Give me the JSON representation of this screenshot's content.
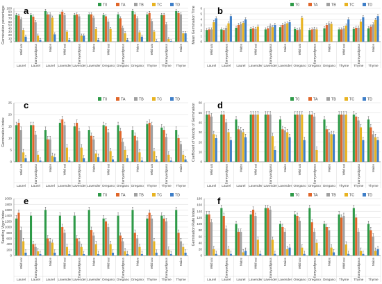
{
  "figure": {
    "colors": {
      "T0": "#2e9a48",
      "TA": "#e0662a",
      "TB": "#a0a0a0",
      "TC": "#e8b321",
      "TD": "#3f7fc8",
      "axis": "#7f7f7f",
      "grid": "#d9d9d9",
      "text": "#404040"
    }
  },
  "chart_data": [
    {
      "panel": "a",
      "type": "bar",
      "ylabel": "Germination percentage",
      "ylim": [
        0,
        100
      ],
      "yticks": [
        0,
        10,
        20,
        30,
        40,
        50,
        60,
        70,
        80,
        90,
        100
      ],
      "legend": [
        "T0",
        "TA",
        "TB",
        "TC",
        "TD"
      ],
      "legend_position": "top-right",
      "categories": [
        "Wild oat",
        "Barnyardgrass",
        "Maize",
        "Wild oat",
        "Barnyardgrass",
        "Maize",
        "Wild oat",
        "Barnyardgrass",
        "Maize",
        "Wild oat",
        "Barnyardgrass",
        "Maize"
      ],
      "groups": [
        "Laurel",
        "Laurel",
        "Laurel",
        "Lavender",
        "Lavender",
        "Lavender",
        "Oregano",
        "Oregano",
        "Oregano",
        "Thyme",
        "Thyme",
        "Thyme"
      ],
      "series": [
        {
          "name": "T0",
          "values": [
            80,
            80,
            92,
            82,
            80,
            82,
            80,
            82,
            92,
            82,
            80,
            92
          ]
        },
        {
          "name": "TA",
          "values": [
            78,
            75,
            82,
            90,
            82,
            82,
            76,
            70,
            82,
            86,
            80,
            86
          ]
        },
        {
          "name": "TB",
          "values": [
            68,
            58,
            82,
            80,
            76,
            72,
            60,
            42,
            70,
            62,
            52,
            82
          ]
        },
        {
          "name": "TC",
          "values": [
            35,
            18,
            72,
            30,
            18,
            38,
            38,
            25,
            28,
            30,
            8,
            25
          ]
        },
        {
          "name": "TD",
          "values": [
            15,
            5,
            22,
            5,
            18,
            5,
            0,
            5,
            15,
            2,
            2,
            25
          ]
        }
      ]
    },
    {
      "panel": "b",
      "type": "bar",
      "ylabel": "Mean Germination Time",
      "ylim": [
        0,
        6
      ],
      "yticks": [
        0,
        1,
        2,
        3,
        4,
        5,
        6
      ],
      "legend": [
        "T0",
        "TA",
        "TB",
        "TC",
        "TD"
      ],
      "legend_position": "top-right",
      "categories": [
        "Wild oat",
        "Barnyardgrass",
        "Maize",
        "Wild oat",
        "Barnyardgrass",
        "Maize",
        "Wild oat",
        "Barnyardgrass",
        "Maize",
        "Wild oat",
        "Barnyardgrass",
        "Maize"
      ],
      "groups": [
        "Laurel",
        "Laurel",
        "Laurel",
        "Lavender",
        "Lavender",
        "Lavender",
        "Oregano",
        "Oregano",
        "Oregano",
        "Thyme",
        "Thyme",
        "Thyme"
      ],
      "series": [
        {
          "name": "T0",
          "values": [
            2.1,
            2.2,
            2.5,
            2.3,
            2.2,
            2.6,
            2.3,
            2.1,
            2.4,
            2.2,
            2.3,
            2.4
          ]
        },
        {
          "name": "TA",
          "values": [
            2.2,
            2.1,
            3.0,
            2.4,
            2.4,
            3.0,
            2.1,
            2.2,
            3.0,
            2.2,
            2.5,
            2.7
          ]
        },
        {
          "name": "TB",
          "values": [
            2.2,
            2.5,
            3.2,
            2.3,
            2.9,
            3.2,
            2.2,
            2.3,
            3.3,
            2.4,
            2.5,
            3.1
          ]
        },
        {
          "name": "TC",
          "values": [
            3.5,
            3.3,
            3.4,
            2.7,
            2.6,
            3.3,
            4.3,
            2.2,
            3.2,
            2.9,
            3.6,
            3.9
          ]
        },
        {
          "name": "TD",
          "values": [
            4.2,
            4.6,
            4.0,
            0,
            3.0,
            3.5,
            0,
            0,
            0,
            4.0,
            4.4,
            4.6
          ]
        }
      ]
    },
    {
      "panel": "c",
      "type": "bar",
      "ylabel": "Germination Index",
      "ylim": [
        0,
        25
      ],
      "yticks": [
        0,
        5,
        10,
        15,
        20,
        25
      ],
      "legend": [
        "T0",
        "TA",
        "TB",
        "TC",
        "TD"
      ],
      "legend_position": "top-right",
      "categories": [
        "Wild oat",
        "Barnyardgrass",
        "Maize",
        "Wild oat",
        "Barnyardgrass",
        "Maize",
        "Wild oat",
        "Barnyardgrass",
        "Maize",
        "Wild oat",
        "Barnyardgrass",
        "Maize"
      ],
      "groups": [
        "Laurel",
        "Laurel",
        "Laurel",
        "Lavender",
        "Lavender",
        "Lavender",
        "Oregano",
        "Oregano",
        "Oregano",
        "Thyme",
        "Thyme",
        "Thyme"
      ],
      "series": [
        {
          "name": "T0",
          "values": [
            15.5,
            15.5,
            13.5,
            16.5,
            15.0,
            13.5,
            15.5,
            15.5,
            13.5,
            16.0,
            14.5,
            13.5
          ]
        },
        {
          "name": "TA",
          "values": [
            16.5,
            15.5,
            9.5,
            18.0,
            16.5,
            11.0,
            15.0,
            13.0,
            11.0,
            16.5,
            13.5,
            10.0
          ]
        },
        {
          "name": "TB",
          "values": [
            13.5,
            11.5,
            9.5,
            15.5,
            13.0,
            9.5,
            12.5,
            8.5,
            9.0,
            15.5,
            10.5,
            7.5
          ]
        },
        {
          "name": "TC",
          "values": [
            4.0,
            3.0,
            2.5,
            6.0,
            6.0,
            3.5,
            4.5,
            5.0,
            4.0,
            4.5,
            3.0,
            3.0
          ]
        },
        {
          "name": "TD",
          "values": [
            1.5,
            0.5,
            2.0,
            0.5,
            1.5,
            2.0,
            1.0,
            1.5,
            0.5,
            1.0,
            0.5,
            1.0
          ]
        }
      ]
    },
    {
      "panel": "d",
      "type": "bar",
      "ylabel": "Coefficient of Velocity of Germination",
      "ylim": [
        0,
        60
      ],
      "yticks": [
        0,
        10,
        20,
        30,
        40,
        50,
        60
      ],
      "legend": [
        "T0",
        "TA",
        "TB",
        "TC",
        "TD"
      ],
      "legend_position": "top-right",
      "categories": [
        "Wild oat",
        "Barnyardgrass",
        "Maize",
        "Wild oat",
        "Barnyardgrass",
        "Maize",
        "Wild oat",
        "Barnyardgrass",
        "Maize",
        "Wild oat",
        "Barnyardgrass",
        "Maize"
      ],
      "groups": [
        "Laurel",
        "Laurel",
        "Laurel",
        "Lavender",
        "Lavender",
        "Lavender",
        "Oregano",
        "Oregano",
        "Oregano",
        "Thyme",
        "Thyme",
        "Thyme"
      ],
      "series": [
        {
          "name": "T0",
          "values": [
            48,
            48,
            43,
            48,
            48,
            43,
            48,
            48,
            43,
            48,
            48,
            43
          ]
        },
        {
          "name": "TA",
          "values": [
            48,
            48,
            33,
            48,
            48,
            33,
            48,
            48,
            33,
            48,
            46,
            35
          ]
        },
        {
          "name": "TB",
          "values": [
            46,
            40,
            32,
            48,
            48,
            32,
            48,
            46,
            30,
            48,
            42,
            28
          ]
        },
        {
          "name": "TC",
          "values": [
            28,
            30,
            30,
            48,
            26,
            30,
            48,
            12,
            28,
            48,
            35,
            25
          ]
        },
        {
          "name": "TD",
          "values": [
            24,
            22,
            25,
            0,
            12,
            25,
            22,
            0,
            28,
            0,
            22,
            22
          ]
        }
      ]
    },
    {
      "panel": "e",
      "type": "bar",
      "ylabel": "Seedling Vigor Index",
      "ylim": [
        0,
        2000
      ],
      "yticks": [
        0,
        200,
        400,
        600,
        800,
        1000,
        1200,
        1400,
        1600,
        1800,
        2000
      ],
      "legend": [
        "T0",
        "TA",
        "TB",
        "TC",
        "TD"
      ],
      "legend_position": "top-right",
      "categories": [
        "Wild oat",
        "Barnyardgrass",
        "Maize",
        "Wild oat",
        "Barnyardgrass",
        "Maize",
        "Wild oat",
        "Barnyardgrass",
        "Maize",
        "Wild oat",
        "Barnyardgrass",
        "Maize"
      ],
      "groups": [
        "Laurel",
        "Laurel",
        "Laurel",
        "Lavender",
        "Lavender",
        "Lavender",
        "Oregano",
        "Oregano",
        "Oregano",
        "Thyme",
        "Thyme",
        "Thyme"
      ],
      "series": [
        {
          "name": "T0",
          "values": [
            1300,
            1400,
            1600,
            1400,
            1400,
            1600,
            1300,
            1400,
            1600,
            1300,
            1400,
            1600
          ]
        },
        {
          "name": "TA",
          "values": [
            1500,
            400,
            600,
            1000,
            600,
            900,
            1200,
            700,
            800,
            1500,
            1300,
            800
          ]
        },
        {
          "name": "TB",
          "values": [
            900,
            300,
            500,
            800,
            500,
            700,
            1000,
            500,
            600,
            1300,
            1200,
            500
          ]
        },
        {
          "name": "TC",
          "values": [
            500,
            150,
            450,
            300,
            300,
            400,
            400,
            150,
            300,
            500,
            200,
            300
          ]
        },
        {
          "name": "TD",
          "values": [
            100,
            50,
            100,
            50,
            50,
            50,
            100,
            50,
            50,
            100,
            50,
            100
          ]
        }
      ]
    },
    {
      "panel": "f",
      "type": "bar",
      "ylabel": "Germination Rate Index",
      "ylim": [
        0,
        180
      ],
      "yticks": [
        0,
        20,
        40,
        60,
        80,
        100,
        120,
        140,
        160,
        180
      ],
      "legend": [
        "T0",
        "TA",
        "TB",
        "TC",
        "TD"
      ],
      "legend_position": "top-right",
      "categories": [
        "Wild oat",
        "Barnyardgrass",
        "Maize",
        "Wild oat",
        "Barnyardgrass",
        "Maize",
        "Wild oat",
        "Barnyardgrass",
        "Maize",
        "Wild oat",
        "Barnyardgrass",
        "Maize"
      ],
      "groups": [
        "Laurel",
        "Laurel",
        "Laurel",
        "Lavender",
        "Lavender",
        "Lavender",
        "Oregano",
        "Oregano",
        "Oregano",
        "Thyme",
        "Thyme",
        "Thyme"
      ],
      "series": [
        {
          "name": "T0",
          "values": [
            130,
            150,
            100,
            130,
            150,
            100,
            130,
            150,
            100,
            130,
            150,
            100
          ]
        },
        {
          "name": "TA",
          "values": [
            130,
            125,
            75,
            145,
            150,
            90,
            125,
            105,
            90,
            120,
            120,
            80
          ]
        },
        {
          "name": "TB",
          "values": [
            105,
            85,
            75,
            125,
            145,
            75,
            110,
            75,
            80,
            125,
            75,
            60
          ]
        },
        {
          "name": "TC",
          "values": [
            20,
            20,
            10,
            50,
            50,
            20,
            25,
            40,
            25,
            35,
            15,
            15
          ]
        },
        {
          "name": "TD",
          "values": [
            5,
            5,
            15,
            5,
            5,
            25,
            5,
            5,
            10,
            5,
            5,
            20
          ]
        }
      ]
    }
  ]
}
